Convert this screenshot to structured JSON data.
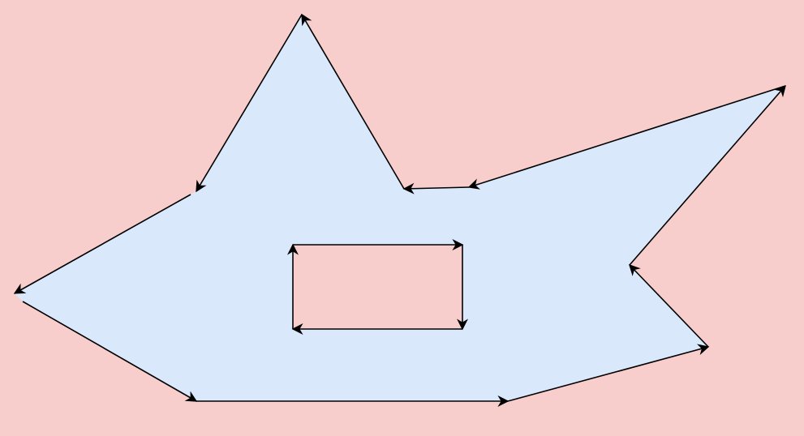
{
  "diagram": {
    "type": "polygon-with-hole",
    "colors": {
      "background": "#f8cecc",
      "fill": "#dae8fc",
      "hole": "#f8cecc",
      "stroke": "#000000"
    },
    "outer_edges": 12,
    "hole_edges": 4,
    "labels": []
  }
}
